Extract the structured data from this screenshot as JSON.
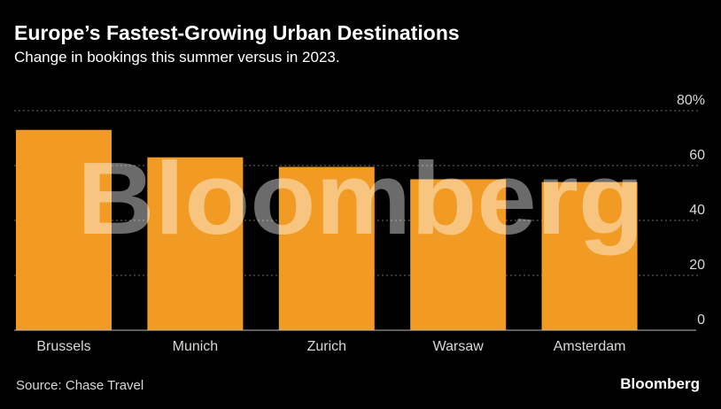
{
  "chart_data": {
    "type": "bar",
    "title": "Europe’s Fastest-Growing Urban Destinations",
    "subtitle": "Change in bookings this summer versus in 2023.",
    "categories": [
      "Brussels",
      "Munich",
      "Zurich",
      "Warsaw",
      "Amsterdam"
    ],
    "values": [
      73,
      63,
      59.5,
      55,
      54
    ],
    "ylim": [
      0,
      80
    ],
    "yticks": [
      0,
      20,
      40,
      60,
      80
    ],
    "ytick_labels": [
      "0",
      "20",
      "40",
      "60",
      "80%"
    ],
    "xlabel": "",
    "ylabel": "",
    "grid": true,
    "bar_color": "#F29B24",
    "watermark": "Bloomberg"
  },
  "footer": {
    "source": "Source: Chase Travel",
    "brand": "Bloomberg"
  }
}
